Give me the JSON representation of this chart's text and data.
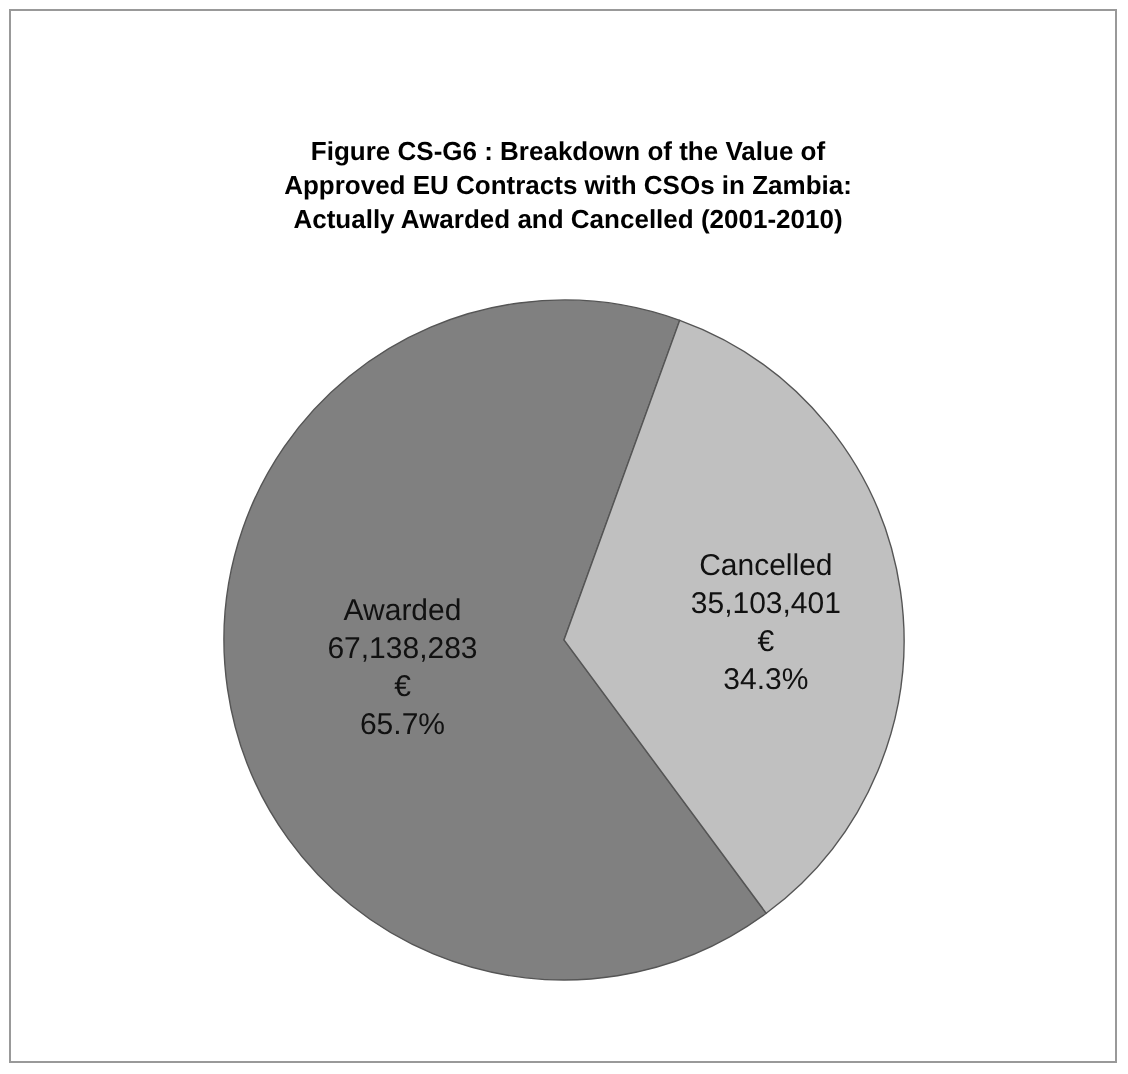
{
  "chart_data": {
    "type": "pie",
    "title": "Figure CS-G6 :  Breakdown of the Value of\nApproved EU Contracts with CSOs in Zambia:\nActually Awarded and Cancelled  (2001-2010)",
    "categories": [
      "Awarded",
      "Cancelled"
    ],
    "values": [
      67138283,
      35103401
    ],
    "colors": [
      "#808080",
      "#c0c0c0"
    ],
    "value_labels": [
      "67,138,283\n€\n65.7%",
      "35,103,401\n€\n34.3%"
    ]
  }
}
